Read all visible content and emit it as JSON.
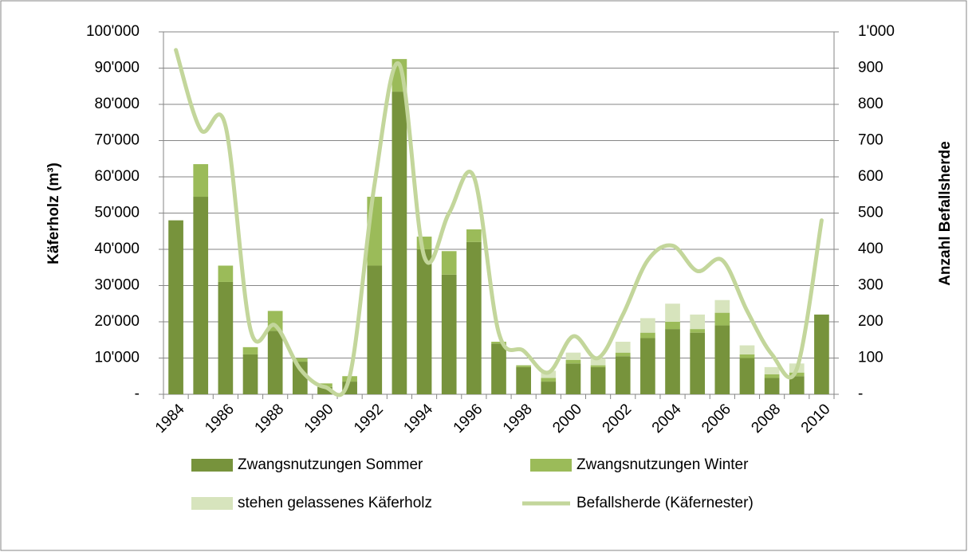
{
  "chart_data": {
    "type": "bar-line",
    "ylabel": "Käferholz (m³)",
    "y2label": "Anzahl Befallsherde",
    "categories": [
      "1984",
      null,
      "1986",
      null,
      "1988",
      null,
      "1990",
      null,
      "1992",
      null,
      "1994",
      null,
      "1996",
      null,
      "1998",
      null,
      "2000",
      null,
      "2002",
      null,
      "2004",
      null,
      "2006",
      null,
      "2008",
      null,
      "2010"
    ],
    "series": [
      {
        "name": "Zwangsnutzungen Sommer",
        "type": "bar",
        "color": "#77933c",
        "values": [
          48000,
          54500,
          31000,
          11000,
          17500,
          9000,
          2000,
          3500,
          35500,
          83500,
          40000,
          33000,
          42000,
          14000,
          7500,
          3500,
          8500,
          7500,
          10500,
          15500,
          18000,
          17000,
          19000,
          10000,
          4500,
          5000,
          22000
        ]
      },
      {
        "name": "Zwangsnutzungen Winter",
        "type": "bar",
        "color": "#9bbb59",
        "values": [
          0,
          9000,
          4500,
          2000,
          5500,
          1000,
          1000,
          1500,
          19000,
          9000,
          3500,
          6500,
          3500,
          500,
          500,
          1000,
          1000,
          500,
          1000,
          1500,
          2000,
          1000,
          3500,
          1000,
          1000,
          1000,
          0
        ]
      },
      {
        "name": "stehen gelassenes Käferholz",
        "type": "bar",
        "color": "#d7e4bd",
        "values": [
          0,
          0,
          0,
          0,
          0,
          0,
          0,
          0,
          0,
          0,
          0,
          0,
          0,
          0,
          0,
          2000,
          2000,
          2000,
          3000,
          4000,
          5000,
          4000,
          3500,
          2500,
          2000,
          2500,
          0
        ]
      },
      {
        "name": "Befallsherde (Käfernester)",
        "type": "line",
        "axis": "y2",
        "color": "#c3d69b",
        "values": [
          950,
          730,
          740,
          180,
          190,
          70,
          20,
          50,
          580,
          910,
          380,
          500,
          600,
          170,
          120,
          60,
          160,
          100,
          220,
          370,
          410,
          340,
          370,
          230,
          110,
          70,
          480
        ]
      }
    ],
    "ylim": [
      0,
      100000
    ],
    "yticks": [
      {
        "value": 0,
        "label": "-"
      },
      {
        "value": 10000,
        "label": "10'000"
      },
      {
        "value": 20000,
        "label": "20'000"
      },
      {
        "value": 30000,
        "label": "30'000"
      },
      {
        "value": 40000,
        "label": "40'000"
      },
      {
        "value": 50000,
        "label": "50'000"
      },
      {
        "value": 60000,
        "label": "60'000"
      },
      {
        "value": 70000,
        "label": "70'000"
      },
      {
        "value": 80000,
        "label": "80'000"
      },
      {
        "value": 90000,
        "label": "90'000"
      },
      {
        "value": 100000,
        "label": "100'000"
      }
    ],
    "y2lim": [
      0,
      1000
    ],
    "y2ticks": [
      {
        "value": 0,
        "label": "-"
      },
      100,
      200,
      300,
      400,
      500,
      600,
      700,
      800,
      900,
      {
        "value": 1000,
        "label": "1'000"
      }
    ],
    "grid": true,
    "legend": "bottom"
  }
}
